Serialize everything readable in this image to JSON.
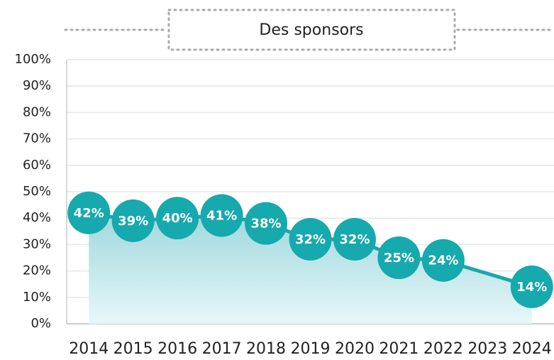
{
  "chart_data": {
    "type": "line",
    "title": "Des sponsors",
    "x": [
      2014,
      2015,
      2016,
      2017,
      2018,
      2019,
      2020,
      2021,
      2022,
      2024
    ],
    "values": [
      42,
      39,
      40,
      41,
      38,
      32,
      32,
      25,
      24,
      14
    ],
    "value_labels": [
      "42%",
      "39%",
      "40%",
      "41%",
      "38%",
      "32%",
      "32%",
      "25%",
      "24%",
      "14%"
    ],
    "color": "#16a9ad",
    "xlim": [
      2013.5,
      2024.5
    ],
    "xticks": [
      2014,
      2015,
      2016,
      2017,
      2018,
      2019,
      2020,
      2021,
      2022,
      2023,
      2024
    ],
    "ylim": [
      0,
      100
    ],
    "yticks": [
      {
        "value": 0,
        "label": "0%"
      },
      {
        "value": 10,
        "label": "10%"
      },
      {
        "value": 20,
        "label": "20%"
      },
      {
        "value": 30,
        "label": "30%"
      },
      {
        "value": 40,
        "label": "40%"
      },
      {
        "value": 50,
        "label": "50%"
      },
      {
        "value": 60,
        "label": "60%"
      },
      {
        "value": 70,
        "label": "70%"
      },
      {
        "value": 80,
        "label": "80%"
      },
      {
        "value": 90,
        "label": "90%"
      },
      {
        "value": 100,
        "label": "100%"
      }
    ],
    "grid": true
  }
}
